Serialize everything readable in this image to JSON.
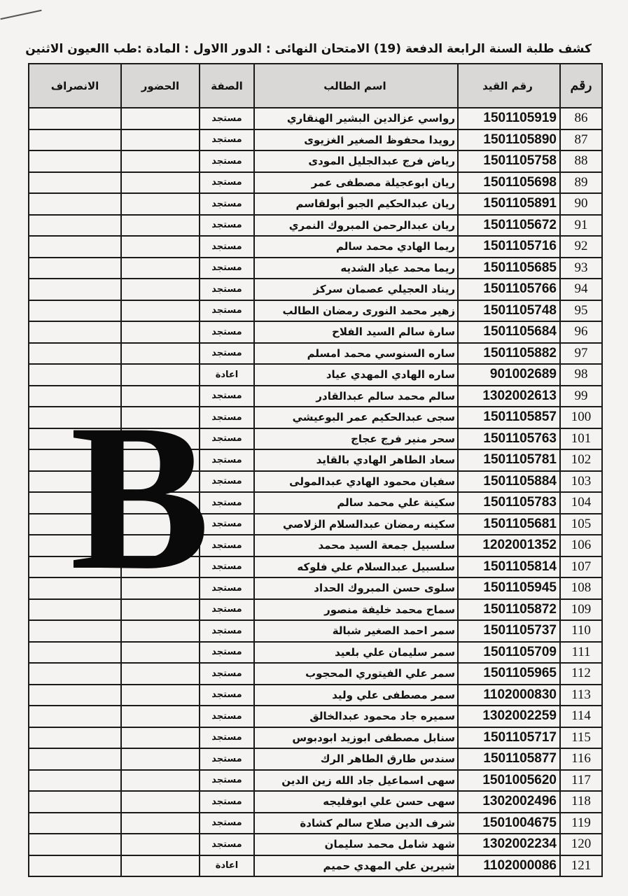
{
  "document": {
    "title": "كشف طلبة السنة الرابعة الدفعة (19) الامتحان النهائى : الدور االاول : المادة :طب االعيون الاثنين",
    "watermark_letter": "B"
  },
  "table": {
    "headers": {
      "number": "رقم",
      "registration_id": "رقم القيد",
      "student_name": "اسم الطالب",
      "status": "الصفة",
      "attendance": "الحضور",
      "departure": "الانصراف"
    },
    "rows": [
      {
        "number": "86",
        "id": "1501105919",
        "name": "رواسي عزالدين البشير  الهنقاري",
        "status": "مستجد"
      },
      {
        "number": "87",
        "id": "1501105890",
        "name": "رويدا محفوظ الصغير  الغزيوى",
        "status": "مستجد"
      },
      {
        "number": "88",
        "id": "1501105758",
        "name": "رياض فرج عبدالجليل  المودى",
        "status": "مستجد"
      },
      {
        "number": "89",
        "id": "1501105698",
        "name": "ريان ابوعجيلة مصطفى  عمر",
        "status": "مستجد"
      },
      {
        "number": "90",
        "id": "1501105891",
        "name": "ريان عبدالحكيم الجبو  أبولقاسم",
        "status": "مستجد"
      },
      {
        "number": "91",
        "id": "1501105672",
        "name": "ريان عبدالرحمن المبروك  النمري",
        "status": "مستجد"
      },
      {
        "number": "92",
        "id": "1501105716",
        "name": "ريما الهادي محمد  سالم",
        "status": "مستجد"
      },
      {
        "number": "93",
        "id": "1501105685",
        "name": "ريما محمد عياد  الشديه",
        "status": "مستجد"
      },
      {
        "number": "94",
        "id": "1501105766",
        "name": "ريناد العجيلي عصمان  سركز",
        "status": "مستجد"
      },
      {
        "number": "95",
        "id": "1501105748",
        "name": "زهير محمد النورى رمضان  الطالب",
        "status": "مستجد"
      },
      {
        "number": "96",
        "id": "1501105684",
        "name": "سارة سالم السيد  الفلاح",
        "status": "مستجد"
      },
      {
        "number": "97",
        "id": "1501105882",
        "name": "ساره السنوسي محمد  امسلم",
        "status": "مستجد"
      },
      {
        "number": "98",
        "id": "901002689",
        "name": "ساره الهادي المهدي عياد",
        "status": "اعادة"
      },
      {
        "number": "99",
        "id": "1302002613",
        "name": "سالم محمد سالم عبدالقادر",
        "status": "مستجد"
      },
      {
        "number": "100",
        "id": "1501105857",
        "name": "سجى عبدالحكيم عمر  البوعيشي",
        "status": "مستجد"
      },
      {
        "number": "101",
        "id": "1501105763",
        "name": "سحر منير فرج  عجاج",
        "status": "مستجد"
      },
      {
        "number": "102",
        "id": "1501105781",
        "name": "سعاد الطاهر الهادي  بالقايد",
        "status": "مستجد"
      },
      {
        "number": "103",
        "id": "1501105884",
        "name": "سفيان محمود الهادي  عبدالمولى",
        "status": "مستجد"
      },
      {
        "number": "104",
        "id": "1501105783",
        "name": "سكينة علي محمد  سالم",
        "status": "مستجد"
      },
      {
        "number": "105",
        "id": "1501105681",
        "name": "سكينه رمضان عبدالسلام  الزلاصي",
        "status": "مستجد"
      },
      {
        "number": "106",
        "id": "1202001352",
        "name": "سلسبيل جمعة السيد محمد",
        "status": "مستجد"
      },
      {
        "number": "107",
        "id": "1501105814",
        "name": "سلسبيل عبدالسلام علي  فلوكه",
        "status": "مستجد"
      },
      {
        "number": "108",
        "id": "1501105945",
        "name": "سلوى حسن المبروك  الحداد",
        "status": "مستجد"
      },
      {
        "number": "109",
        "id": "1501105872",
        "name": "سماح محمد خليفة  منصور",
        "status": "مستجد"
      },
      {
        "number": "110",
        "id": "1501105737",
        "name": "سمر احمد الصغير  شبالة",
        "status": "مستجد"
      },
      {
        "number": "111",
        "id": "1501105709",
        "name": "سمر سليمان علي  بلعيد",
        "status": "مستجد"
      },
      {
        "number": "112",
        "id": "1501105965",
        "name": "سمر علي الفيتوري  المحجوب",
        "status": "مستجد"
      },
      {
        "number": "113",
        "id": "1102000830",
        "name": "سمر مصطفى علي وليد",
        "status": "مستجد"
      },
      {
        "number": "114",
        "id": "1302002259",
        "name": "سميره جاد محمود عبدالخالق",
        "status": "مستجد"
      },
      {
        "number": "115",
        "id": "1501105717",
        "name": "سنابل مصطفى ابوزيد  ابودبوس",
        "status": "مستجد"
      },
      {
        "number": "116",
        "id": "1501105877",
        "name": "سندس طارق الطاهر  الرك",
        "status": "مستجد"
      },
      {
        "number": "117",
        "id": "1501005620",
        "name": "سهى اسماعيل جاد الله زين الدين",
        "status": "مستجد"
      },
      {
        "number": "118",
        "id": "1302002496",
        "name": "سهى حسن علي ابوفليجه",
        "status": "مستجد"
      },
      {
        "number": "119",
        "id": "1501004675",
        "name": "شرف الدين صلاح سالم كشادة",
        "status": "مستجد"
      },
      {
        "number": "120",
        "id": "1302002234",
        "name": "شهد شامل محمد سليمان",
        "status": "مستجد"
      },
      {
        "number": "121",
        "id": "1102000086",
        "name": "شيرين علي المهدي حميم",
        "status": "اعادة"
      }
    ]
  }
}
